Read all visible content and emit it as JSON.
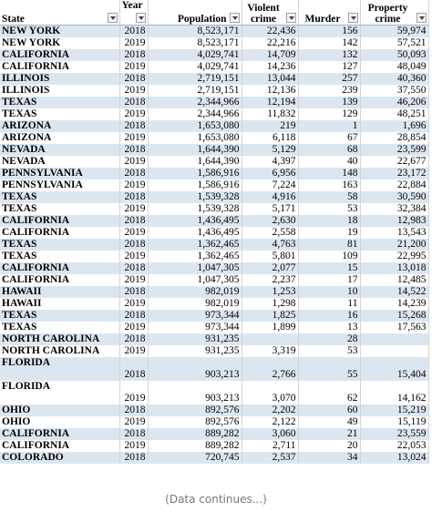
{
  "table": {
    "columns": [
      "State",
      "Year",
      "Population",
      "Violent crime",
      "Murder",
      "Property crime"
    ],
    "rows": [
      [
        "NEW YORK",
        "2018",
        "8,523,171",
        "22,436",
        "156",
        "59,974"
      ],
      [
        "NEW YORK",
        "2019",
        "8,523,171",
        "22,216",
        "142",
        "57,521"
      ],
      [
        "CALIFORNIA",
        "2018",
        "4,029,741",
        "14,709",
        "132",
        "50,093"
      ],
      [
        "CALIFORNIA",
        "2019",
        "4,029,741",
        "14,236",
        "127",
        "48,049"
      ],
      [
        "ILLINOIS",
        "2018",
        "2,719,151",
        "13,044",
        "257",
        "40,360"
      ],
      [
        "ILLINOIS",
        "2019",
        "2,719,151",
        "12,136",
        "239",
        "37,550"
      ],
      [
        "TEXAS",
        "2018",
        "2,344,966",
        "12,194",
        "139",
        "46,206"
      ],
      [
        "TEXAS",
        "2019",
        "2,344,966",
        "11,832",
        "129",
        "48,251"
      ],
      [
        "ARIZONA",
        "2018",
        "1,653,080",
        "219",
        "1",
        "1,696"
      ],
      [
        "ARIZONA",
        "2019",
        "1,653,080",
        "6,118",
        "67",
        "28,854"
      ],
      [
        "NEVADA",
        "2018",
        "1,644,390",
        "5,129",
        "68",
        "23,599"
      ],
      [
        "NEVADA",
        "2019",
        "1,644,390",
        "4,397",
        "40",
        "22,677"
      ],
      [
        "PENNSYLVANIA",
        "2018",
        "1,586,916",
        "6,956",
        "148",
        "23,172"
      ],
      [
        "PENNSYLVANIA",
        "2019",
        "1,586,916",
        "7,224",
        "163",
        "22,884"
      ],
      [
        "TEXAS",
        "2018",
        "1,539,328",
        "4,916",
        "58",
        "30,590"
      ],
      [
        "TEXAS",
        "2019",
        "1,539,328",
        "5,171",
        "53",
        "32,384"
      ],
      [
        "CALIFORNIA",
        "2018",
        "1,436,495",
        "2,630",
        "18",
        "12,983"
      ],
      [
        "CALIFORNIA",
        "2019",
        "1,436,495",
        "2,558",
        "19",
        "13,543"
      ],
      [
        "TEXAS",
        "2018",
        "1,362,465",
        "4,763",
        "81",
        "21,200"
      ],
      [
        "TEXAS",
        "2019",
        "1,362,465",
        "5,801",
        "109",
        "22,995"
      ],
      [
        "CALIFORNIA",
        "2018",
        "1,047,305",
        "2,077",
        "15",
        "13,018"
      ],
      [
        "CALIFORNIA",
        "2019",
        "1,047,305",
        "2,237",
        "17",
        "12,485"
      ],
      [
        "HAWAII",
        "2018",
        "982,019",
        "1,253",
        "10",
        "14,522"
      ],
      [
        "HAWAII",
        "2019",
        "982,019",
        "1,298",
        "11",
        "14,239"
      ],
      [
        "TEXAS",
        "2018",
        "973,344",
        "1,825",
        "16",
        "15,268"
      ],
      [
        "TEXAS",
        "2019",
        "973,344",
        "1,899",
        "13",
        "17,563"
      ],
      [
        "NORTH CAROLINA",
        "2018",
        "931,235",
        null,
        "28",
        null
      ],
      [
        "NORTH CAROLINA",
        "2019",
        "931,235",
        "3,319",
        "53",
        null
      ],
      [
        "FLORIDA",
        "2018",
        "903,213",
        "2,766",
        "55",
        "15,404"
      ],
      [
        "FLORIDA",
        "2019",
        "903,213",
        "3,070",
        "62",
        "14,162"
      ],
      [
        "OHIO",
        "2018",
        "892,576",
        "2,202",
        "60",
        "15,219"
      ],
      [
        "OHIO",
        "2019",
        "892,576",
        "2,122",
        "49",
        "15,119"
      ],
      [
        "CALIFORNIA",
        "2018",
        "889,282",
        "3,060",
        "21",
        "23,559"
      ],
      [
        "CALIFORNIA",
        "2019",
        "889,282",
        "2,711",
        "20",
        "22,053"
      ],
      [
        "COLORADO",
        "2018",
        "720,745",
        "2,537",
        "34",
        "13,024"
      ]
    ]
  },
  "footer": "(Data continues...)"
}
